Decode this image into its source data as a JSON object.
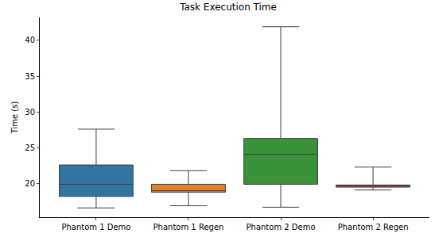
{
  "chart_data": {
    "type": "box",
    "title": "Task Execution Time",
    "y_label": "Time (s)",
    "categories": [
      "Phantom 1 Demo",
      "Phantom 1 Regen",
      "Phantom 2 Demo",
      "Phantom 2 Regen"
    ],
    "lower_whisker": [
      16.6,
      16.9,
      16.7,
      19.1
    ],
    "q1": [
      18.2,
      18.8,
      19.9,
      19.5
    ],
    "median": [
      19.9,
      19.0,
      24.1,
      19.7
    ],
    "q3": [
      22.6,
      19.9,
      26.3,
      19.8
    ],
    "upper_whisker": [
      27.6,
      21.8,
      41.9,
      22.3
    ],
    "colors": [
      "#3274a1",
      "#e1812c",
      "#3a923a",
      "#c03d3e"
    ],
    "ylim": [
      15.3,
      43.2
    ],
    "yticks": [
      20,
      25,
      30,
      35,
      40
    ],
    "grid": false
  }
}
